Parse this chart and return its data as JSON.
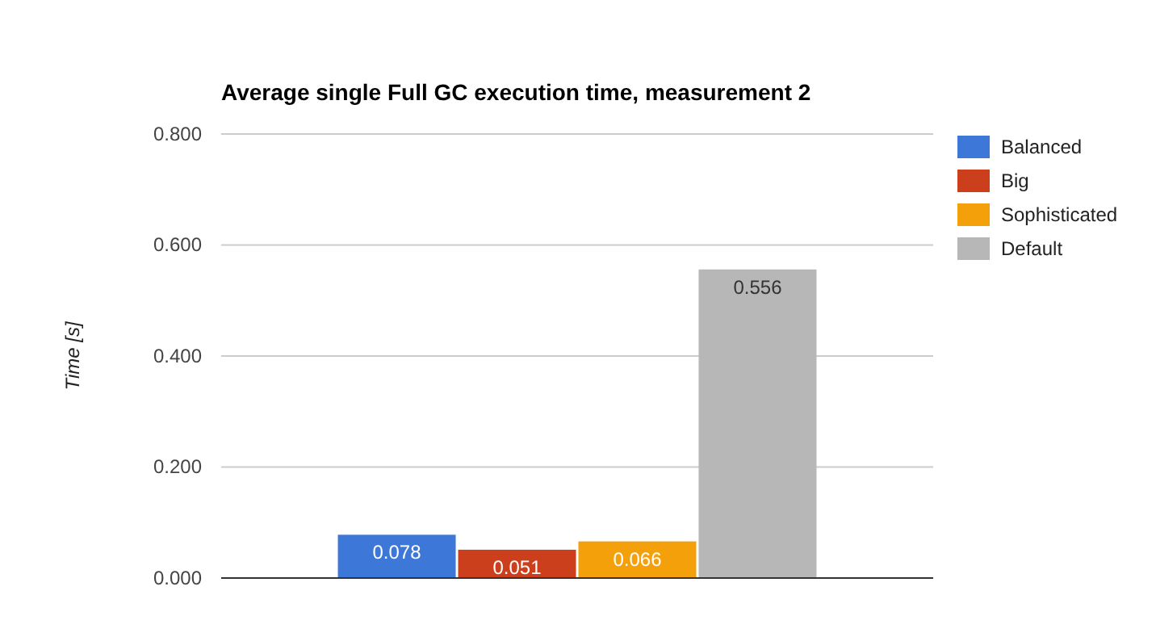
{
  "chart_data": {
    "type": "bar",
    "title": "Average single Full GC execution time, measurement 2",
    "ylabel": "Time [s]",
    "categories": [
      null
    ],
    "series": [
      {
        "name": "Balanced",
        "color": "#3d78d8",
        "values": [
          0.078
        ]
      },
      {
        "name": "Big",
        "color": "#cc3f1c",
        "values": [
          0.051
        ]
      },
      {
        "name": "Sophisticated",
        "color": "#f4a00b",
        "values": [
          0.066
        ]
      },
      {
        "name": "Default",
        "color": "#b7b7b7",
        "values": [
          0.556
        ]
      }
    ],
    "ylim": [
      0,
      0.8
    ],
    "yticks": [
      {
        "value": 0,
        "label": "0.000"
      },
      {
        "value": 0.2,
        "label": "0.200"
      },
      {
        "value": 0.4,
        "label": "0.400"
      },
      {
        "value": 0.6,
        "label": "0.600"
      },
      {
        "value": 0.8,
        "label": "0.800"
      }
    ],
    "grid": "y",
    "legend": "top right",
    "data_labels": true
  }
}
